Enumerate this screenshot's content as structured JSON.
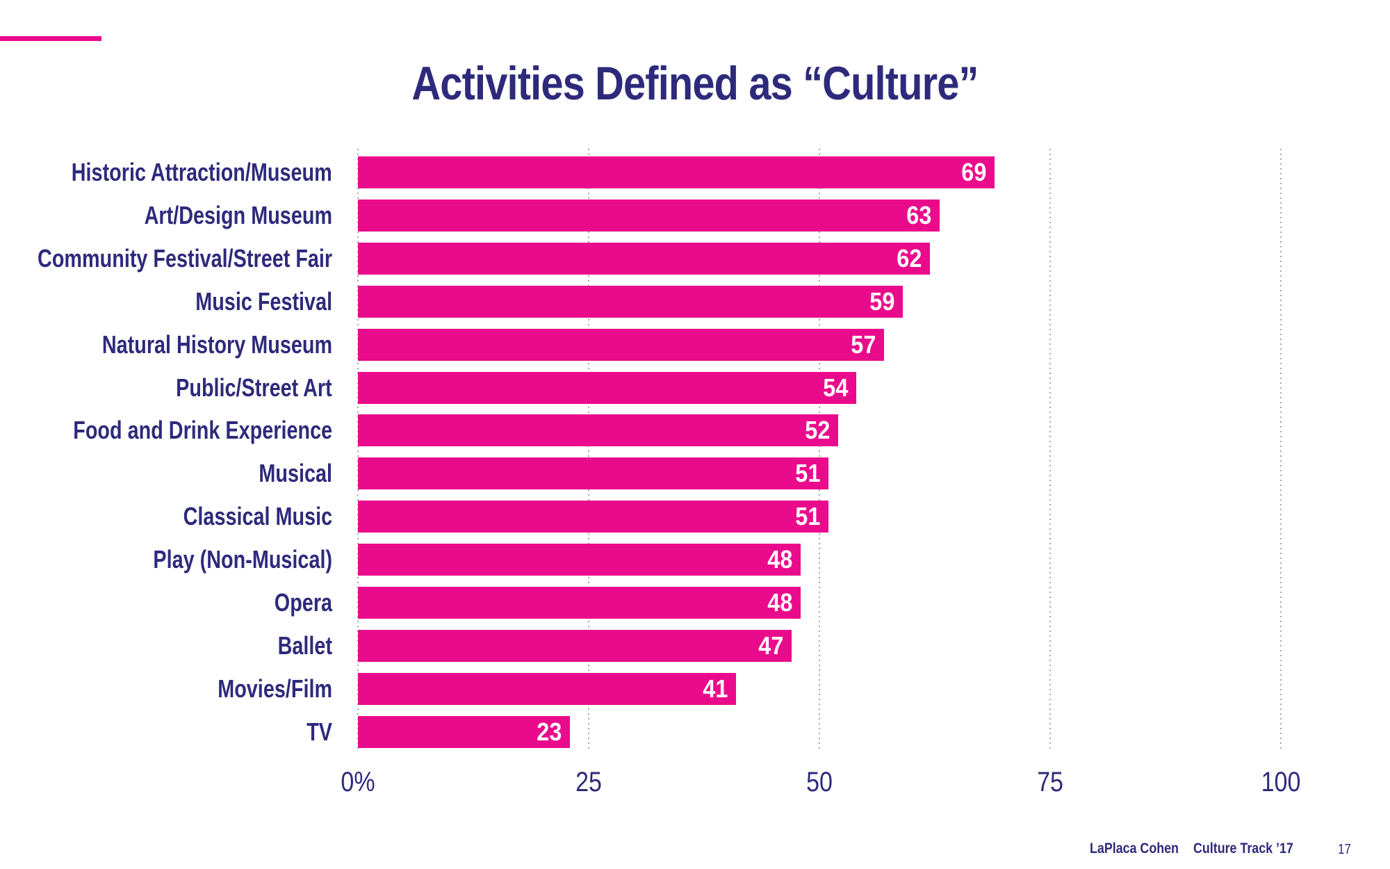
{
  "title": "Activities Defined as “Culture”",
  "colors": {
    "accent_pink": "#EA0B8C",
    "navy": "#2E2A7B",
    "gridline_gray": "#A6A6A6",
    "value_label_white": "#FFFFFF"
  },
  "chart_data": {
    "type": "bar",
    "orientation": "horizontal",
    "title": "Activities Defined as “Culture”",
    "categories": [
      "Historic Attraction/Museum",
      "Art/Design Museum",
      "Community Festival/Street Fair",
      "Music Festival",
      "Natural History Museum",
      "Public/Street Art",
      "Food and Drink Experience",
      "Musical",
      "Classical Music",
      "Play (Non-Musical)",
      "Opera",
      "Ballet",
      "Movies/Film",
      "TV"
    ],
    "values": [
      69,
      63,
      62,
      59,
      57,
      54,
      52,
      51,
      51,
      48,
      48,
      47,
      41,
      23
    ],
    "value_labels": [
      "69",
      "63",
      "62",
      "59",
      "57",
      "54",
      "52",
      "51",
      "51",
      "48",
      "48",
      "47",
      "41",
      "23"
    ],
    "xlim": [
      0,
      100
    ],
    "xtick_labels": [
      "0%",
      "25",
      "50",
      "75",
      "100"
    ],
    "xtick_values": [
      0,
      25,
      50,
      75,
      100
    ],
    "grid": "dotted-vertical",
    "bar_color": "#EA0B8C",
    "label_color": "#2E2A7B",
    "legend": "none"
  },
  "footer": {
    "brand": "LaPlaca Cohen",
    "report": "Culture Track ’17",
    "page": "17"
  }
}
